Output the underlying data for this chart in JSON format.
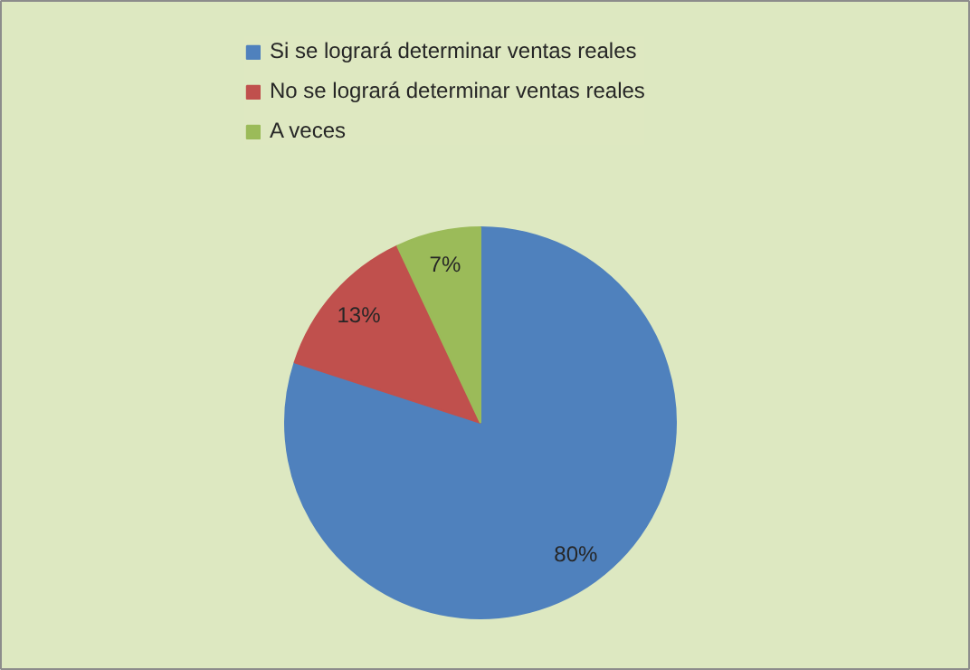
{
  "chart_data": {
    "type": "pie",
    "categories": [
      "Si se logrará determinar ventas reales",
      "No se logrará determinar ventas reales",
      "A veces"
    ],
    "values": [
      80,
      13,
      7
    ],
    "colors": [
      "#4f81bd",
      "#c0504d",
      "#9bbb59"
    ],
    "value_labels": [
      "80%",
      "13%",
      "7%"
    ],
    "legend": "top"
  }
}
